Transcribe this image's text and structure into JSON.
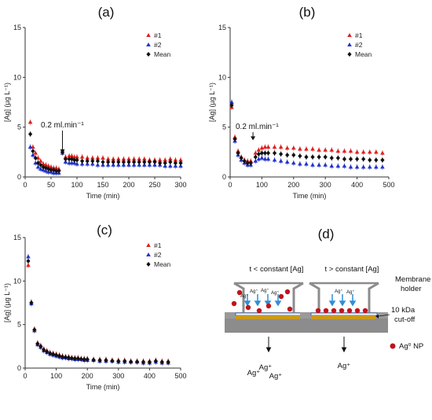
{
  "chart_data": [
    {
      "panel": "(a)",
      "type": "scatter",
      "xlabel": "Time (min)",
      "ylabel": "[Ag] (µg L⁻¹)",
      "xlim": [
        0,
        300
      ],
      "ylim": [
        0,
        15
      ],
      "xticks": [
        "0",
        "50",
        "100",
        "150",
        "200",
        "250",
        "300"
      ],
      "yticks": [
        "0",
        "5",
        "10",
        "15"
      ],
      "legend_position": "top-right",
      "annotation": {
        "text": "0.2 ml.min⁻¹",
        "x": 72,
        "y": 2.3
      },
      "series": [
        {
          "name": "#1",
          "color": "#e02020",
          "marker": "triangle",
          "x": [
            10,
            15,
            20,
            25,
            30,
            35,
            40,
            45,
            50,
            55,
            60,
            65,
            72,
            78,
            85,
            90,
            95,
            100,
            110,
            120,
            130,
            140,
            150,
            160,
            170,
            180,
            190,
            200,
            210,
            220,
            230,
            240,
            250,
            260,
            270,
            280,
            290,
            300
          ],
          "y": [
            5.5,
            3.0,
            2.4,
            1.9,
            1.6,
            1.3,
            1.2,
            1.1,
            1.0,
            0.9,
            0.9,
            0.8,
            2.6,
            2.0,
            2.1,
            2.1,
            2.0,
            2.0,
            2.0,
            1.9,
            1.9,
            1.9,
            1.9,
            1.8,
            1.8,
            1.8,
            1.8,
            1.8,
            1.8,
            1.8,
            1.8,
            1.7,
            1.7,
            1.7,
            1.7,
            1.8,
            1.7,
            1.7
          ]
        },
        {
          "name": "#2",
          "color": "#2233cc",
          "marker": "triangle",
          "x": [
            10,
            15,
            20,
            25,
            30,
            35,
            40,
            45,
            50,
            55,
            60,
            65,
            72,
            78,
            85,
            90,
            95,
            100,
            110,
            120,
            130,
            140,
            150,
            160,
            170,
            180,
            190,
            200,
            210,
            220,
            230,
            240,
            250,
            260,
            270,
            280,
            290,
            300
          ],
          "y": [
            3.0,
            2.2,
            1.4,
            1.0,
            0.8,
            0.7,
            0.6,
            0.5,
            0.5,
            0.4,
            0.4,
            0.4,
            2.4,
            1.5,
            1.4,
            1.4,
            1.4,
            1.3,
            1.3,
            1.3,
            1.3,
            1.2,
            1.2,
            1.2,
            1.2,
            1.2,
            1.2,
            1.2,
            1.2,
            1.2,
            1.2,
            1.2,
            1.2,
            1.2,
            1.1,
            1.1,
            1.1,
            1.1
          ]
        },
        {
          "name": "Mean",
          "color": "#111111",
          "marker": "diamond",
          "x": [
            10,
            15,
            20,
            25,
            30,
            35,
            40,
            45,
            50,
            55,
            60,
            65,
            72,
            78,
            85,
            90,
            95,
            100,
            110,
            120,
            130,
            140,
            150,
            160,
            170,
            180,
            190,
            200,
            210,
            220,
            230,
            240,
            250,
            260,
            270,
            280,
            290,
            300
          ],
          "y": [
            4.3,
            2.6,
            1.9,
            1.4,
            1.2,
            1.0,
            0.9,
            0.8,
            0.7,
            0.7,
            0.6,
            0.6,
            2.5,
            1.8,
            1.8,
            1.8,
            1.7,
            1.7,
            1.6,
            1.6,
            1.6,
            1.6,
            1.5,
            1.5,
            1.5,
            1.5,
            1.5,
            1.5,
            1.5,
            1.5,
            1.5,
            1.5,
            1.5,
            1.4,
            1.4,
            1.5,
            1.4,
            1.4
          ]
        }
      ]
    },
    {
      "panel": "(b)",
      "type": "scatter",
      "xlabel": "Time (min)",
      "ylabel": "[Ag] (µg L⁻¹)",
      "xlim": [
        0,
        500
      ],
      "ylim": [
        0,
        15
      ],
      "xticks": [
        "0",
        "100",
        "200",
        "300",
        "400",
        "500"
      ],
      "yticks": [
        "0",
        "5",
        "10",
        "15"
      ],
      "legend_position": "top-right",
      "annotation": {
        "text": "0.2 ml.min⁻¹",
        "x": 72,
        "y": 3.6
      },
      "series": [
        {
          "name": "#1",
          "color": "#e02020",
          "marker": "triangle",
          "x": [
            5,
            15,
            25,
            35,
            45,
            55,
            65,
            80,
            90,
            100,
            110,
            120,
            140,
            160,
            180,
            200,
            220,
            240,
            260,
            280,
            300,
            320,
            340,
            360,
            380,
            400,
            420,
            440,
            460,
            480
          ],
          "y": [
            7.0,
            4.0,
            2.6,
            2.0,
            1.7,
            1.6,
            1.6,
            2.4,
            2.7,
            2.9,
            3.0,
            3.0,
            3.0,
            3.0,
            2.9,
            2.9,
            2.8,
            2.8,
            2.8,
            2.7,
            2.7,
            2.7,
            2.6,
            2.6,
            2.6,
            2.5,
            2.5,
            2.5,
            2.5,
            2.4
          ]
        },
        {
          "name": "#2",
          "color": "#2233cc",
          "marker": "triangle",
          "x": [
            5,
            15,
            25,
            35,
            45,
            55,
            65,
            80,
            90,
            100,
            110,
            120,
            140,
            160,
            180,
            200,
            220,
            240,
            260,
            280,
            300,
            320,
            340,
            360,
            380,
            400,
            420,
            440,
            460,
            480
          ],
          "y": [
            7.5,
            3.6,
            2.2,
            1.7,
            1.4,
            1.2,
            1.2,
            1.6,
            1.8,
            1.9,
            1.8,
            1.8,
            1.7,
            1.6,
            1.5,
            1.4,
            1.3,
            1.3,
            1.2,
            1.2,
            1.2,
            1.1,
            1.1,
            1.1,
            1.0,
            1.0,
            1.0,
            1.0,
            1.0,
            1.0
          ]
        },
        {
          "name": "Mean",
          "color": "#111111",
          "marker": "diamond",
          "x": [
            5,
            15,
            25,
            35,
            45,
            55,
            65,
            80,
            90,
            100,
            110,
            120,
            140,
            160,
            180,
            200,
            220,
            240,
            260,
            280,
            300,
            320,
            340,
            360,
            380,
            400,
            420,
            440,
            460,
            480
          ],
          "y": [
            7.2,
            3.8,
            2.4,
            1.9,
            1.6,
            1.4,
            1.4,
            2.0,
            2.3,
            2.4,
            2.4,
            2.4,
            2.4,
            2.3,
            2.2,
            2.2,
            2.1,
            2.0,
            2.0,
            2.0,
            2.0,
            1.9,
            1.9,
            1.8,
            1.8,
            1.8,
            1.8,
            1.7,
            1.7,
            1.7
          ]
        }
      ]
    },
    {
      "panel": "(c)",
      "type": "scatter",
      "xlabel": "Time (min)",
      "ylabel": "[Ag] (µg L⁻¹)",
      "xlim": [
        0,
        500
      ],
      "ylim": [
        0,
        15
      ],
      "xticks": [
        "0",
        "100",
        "200",
        "300",
        "400",
        "500"
      ],
      "yticks": [
        "0",
        "5",
        "10",
        "15"
      ],
      "legend_position": "top-right",
      "series": [
        {
          "name": "#1",
          "color": "#e02020",
          "marker": "triangle",
          "x": [
            10,
            20,
            30,
            40,
            50,
            60,
            70,
            80,
            90,
            100,
            110,
            120,
            130,
            140,
            150,
            160,
            170,
            180,
            190,
            200,
            220,
            240,
            260,
            280,
            300,
            320,
            340,
            360,
            380,
            400,
            420,
            440,
            460
          ],
          "y": [
            11.8,
            7.6,
            4.5,
            2.9,
            2.6,
            2.2,
            2.0,
            1.8,
            1.7,
            1.6,
            1.5,
            1.4,
            1.3,
            1.3,
            1.2,
            1.2,
            1.2,
            1.1,
            1.1,
            1.1,
            1.0,
            1.0,
            1.0,
            0.9,
            0.9,
            0.9,
            0.8,
            0.8,
            0.8,
            0.8,
            0.9,
            0.8,
            0.8
          ]
        },
        {
          "name": "#2",
          "color": "#2233cc",
          "marker": "triangle",
          "x": [
            10,
            20,
            30,
            40,
            50,
            60,
            70,
            80,
            90,
            100,
            110,
            120,
            130,
            140,
            150,
            160,
            170,
            180,
            190,
            200,
            220,
            240,
            260,
            280,
            300,
            320,
            340,
            360,
            380,
            400,
            420,
            440,
            460
          ],
          "y": [
            12.8,
            7.4,
            4.3,
            2.7,
            2.4,
            2.0,
            1.8,
            1.6,
            1.5,
            1.4,
            1.3,
            1.2,
            1.2,
            1.1,
            1.1,
            1.0,
            1.0,
            1.0,
            0.9,
            0.9,
            0.9,
            0.8,
            0.8,
            0.8,
            0.7,
            0.7,
            0.7,
            0.7,
            0.6,
            0.6,
            0.7,
            0.6,
            0.6
          ]
        },
        {
          "name": "Mean",
          "color": "#111111",
          "marker": "diamond",
          "x": [
            10,
            20,
            30,
            40,
            50,
            60,
            70,
            80,
            90,
            100,
            110,
            120,
            130,
            140,
            150,
            160,
            170,
            180,
            190,
            200,
            220,
            240,
            260,
            280,
            300,
            320,
            340,
            360,
            380,
            400,
            420,
            440,
            460
          ],
          "y": [
            12.3,
            7.5,
            4.4,
            2.8,
            2.5,
            2.1,
            1.9,
            1.7,
            1.6,
            1.5,
            1.4,
            1.3,
            1.25,
            1.2,
            1.15,
            1.1,
            1.1,
            1.05,
            1.0,
            1.0,
            0.95,
            0.9,
            0.9,
            0.85,
            0.8,
            0.8,
            0.75,
            0.75,
            0.7,
            0.7,
            0.8,
            0.7,
            0.7
          ]
        }
      ]
    }
  ],
  "diagram": {
    "panel": "(d)",
    "left_title": "t < constant [Ag]",
    "right_title": "t > constant [Ag]",
    "ion_label": "Ag⁺",
    "membrane_label_1": "Membrane",
    "membrane_label_2": "holder",
    "cutoff_label_1": "10 kDa",
    "cutoff_label_2": "cut-off",
    "np_legend": "Ag⁰ NP",
    "colors": {
      "np": "#c0141c",
      "arrow": "#2f8fd8",
      "filter": "#c99a1c",
      "holder": "#8c8c8c"
    }
  }
}
